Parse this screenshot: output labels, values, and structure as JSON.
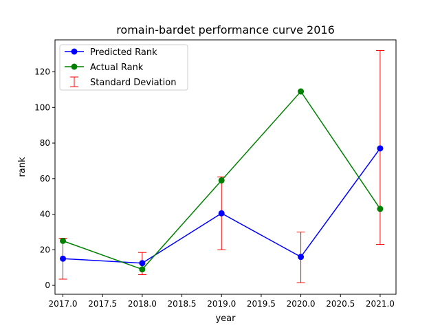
{
  "chart_data": {
    "type": "line",
    "title": "romain-bardet performance curve 2016",
    "xlabel": "year",
    "ylabel": "rank",
    "xlim": [
      2016.9,
      2021.2
    ],
    "ylim": [
      -5,
      138
    ],
    "xticks": [
      2017.0,
      2017.5,
      2018.0,
      2018.5,
      2019.0,
      2019.5,
      2020.0,
      2020.5,
      2021.0
    ],
    "xtick_labels": [
      "2017.0",
      "2017.5",
      "2018.0",
      "2018.5",
      "2019.0",
      "2019.5",
      "2020.0",
      "2020.5",
      "2021.0"
    ],
    "yticks": [
      0,
      20,
      40,
      60,
      80,
      100,
      120
    ],
    "ytick_labels": [
      "0",
      "20",
      "40",
      "60",
      "80",
      "100",
      "120"
    ],
    "x": [
      2017,
      2018,
      2019,
      2020,
      2021
    ],
    "series": [
      {
        "name": "Predicted Rank",
        "color": "#0000ff",
        "values": [
          15,
          12.5,
          40.5,
          16,
          77
        ]
      },
      {
        "name": "Actual Rank",
        "color": "#008000",
        "values": [
          25,
          9,
          59,
          109,
          43
        ]
      }
    ],
    "error_bars": {
      "name": "Standard Deviation",
      "color": "#ff0000",
      "lower": [
        3.5,
        6,
        20,
        1.5,
        23
      ],
      "upper": [
        26.5,
        18.5,
        61,
        30,
        132
      ]
    },
    "legend_position": "top-left",
    "grid": false
  }
}
